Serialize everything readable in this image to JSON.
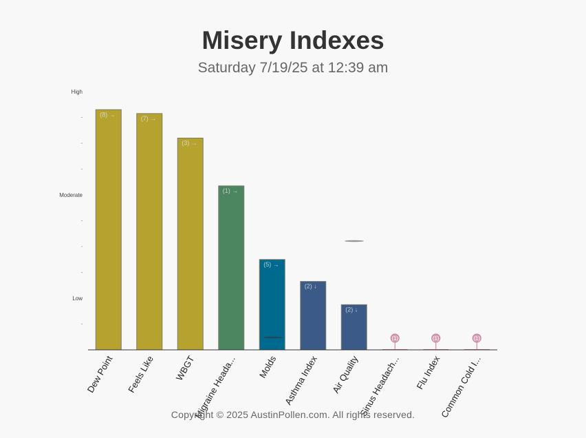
{
  "header": {
    "title": "Misery Indexes",
    "subtitle": "Saturday 7/19/25 at 12:39 am"
  },
  "footer": {
    "copyright": "Copyright © 2025 AustinPollen.com.  All rights reserved."
  },
  "colors": {
    "gold": "#b5a22f",
    "green": "#4c8660",
    "teal": "#006a8e",
    "blue": "#3b5a88",
    "pink": "#c97a96",
    "axis": "#333333"
  },
  "chart_data": {
    "type": "bar",
    "ylim": [
      0,
      10
    ],
    "y_ticks": [
      {
        "value": 2,
        "label": "Low"
      },
      {
        "value": 6,
        "label": "Moderate"
      },
      {
        "value": 10,
        "label": "High"
      }
    ],
    "y_minor_ticks": [
      1,
      3,
      4,
      5,
      7,
      8,
      9
    ],
    "categories": [
      "Dew Point",
      "Feels Like",
      "WBGT",
      "Migraine Heada...",
      "Molds",
      "Asthma Index",
      "Air Quality",
      "Sinus Headach...",
      "Flu Index",
      "Common Cold I..."
    ],
    "values": [
      9.3,
      9.15,
      8.2,
      6.35,
      3.5,
      2.65,
      1.75,
      0,
      0,
      0
    ],
    "labels": [
      "(8) →",
      "(7) →",
      "(3) →",
      "(1) →",
      "(5) →",
      "(2) ↓",
      "(2) ↓",
      "(1)",
      "(1)",
      "(1)"
    ],
    "colors": [
      "#b5a22f",
      "#b5a22f",
      "#b5a22f",
      "#4c8660",
      "#006a8e",
      "#3b5a88",
      "#3b5a88",
      "#c97a96",
      "#c97a96",
      "#c97a96"
    ]
  }
}
